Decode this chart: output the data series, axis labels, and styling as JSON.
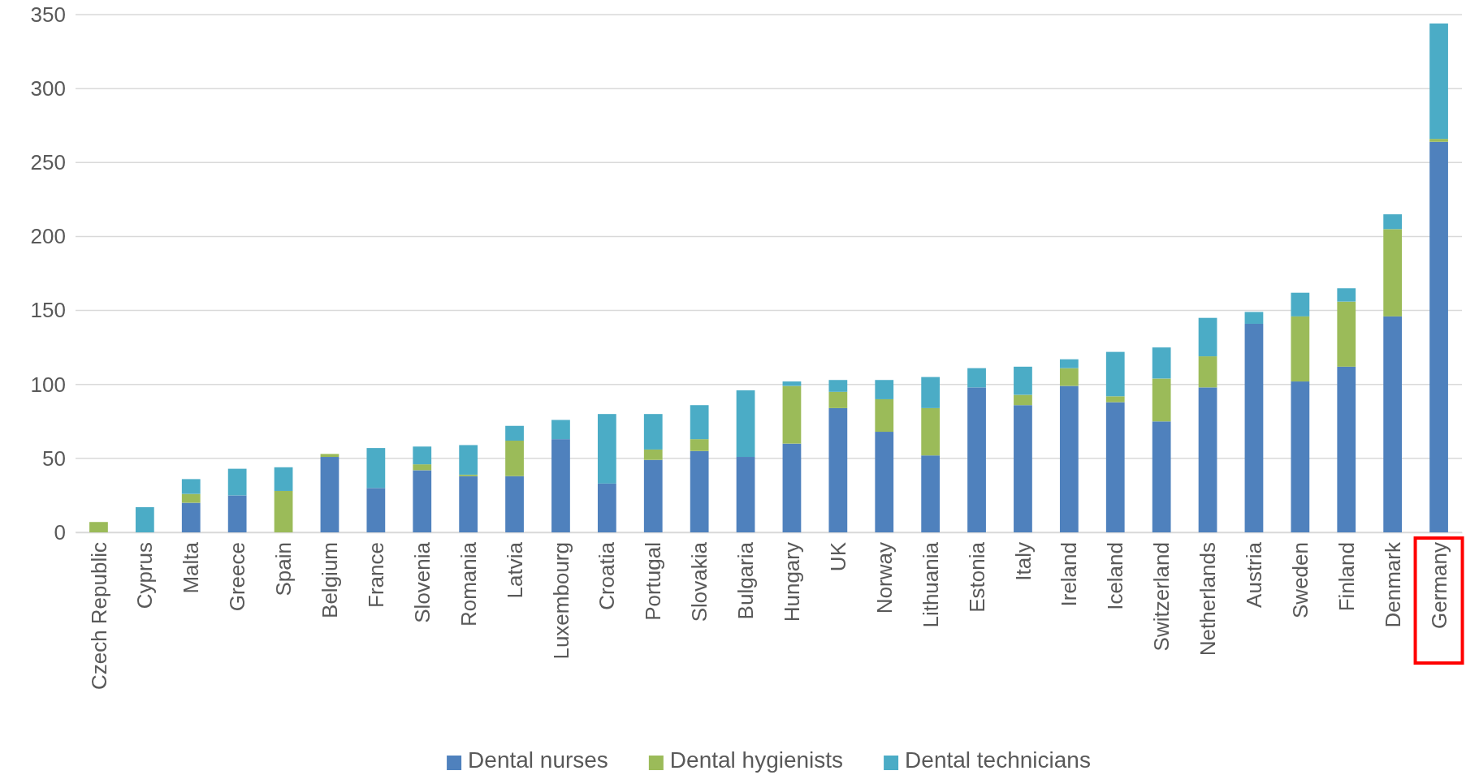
{
  "chart_data": {
    "type": "bar",
    "stacked": true,
    "categories": [
      "Czech Republic",
      "Cyprus",
      "Malta",
      "Greece",
      "Spain",
      "Belgium",
      "France",
      "Slovenia",
      "Romania",
      "Latvia",
      "Luxembourg",
      "Croatia",
      "Portugal",
      "Slovakia",
      "Bulgaria",
      "Hungary",
      "UK",
      "Norway",
      "Lithuania",
      "Estonia",
      "Italy",
      "Ireland",
      "Iceland",
      "Switzerland",
      "Netherlands",
      "Austria",
      "Sweden",
      "Finland",
      "Denmark",
      "Germany"
    ],
    "series": [
      {
        "name": "Dental nurses",
        "color": "#4f81bd",
        "values": [
          0,
          0,
          20,
          25,
          0,
          51,
          30,
          42,
          38,
          38,
          63,
          33,
          49,
          55,
          51,
          60,
          84,
          68,
          52,
          98,
          86,
          99,
          88,
          75,
          98,
          141,
          102,
          112,
          146,
          264
        ]
      },
      {
        "name": "Dental hygienists",
        "color": "#9bbb59",
        "values": [
          7,
          0,
          6,
          0,
          28,
          2,
          0,
          4,
          1,
          24,
          0,
          0,
          7,
          8,
          0,
          39,
          11,
          22,
          32,
          0,
          7,
          12,
          4,
          29,
          21,
          0,
          44,
          44,
          59,
          2
        ]
      },
      {
        "name": "Dental technicians",
        "color": "#4bacc6",
        "values": [
          0,
          17,
          10,
          18,
          16,
          0,
          27,
          12,
          20,
          10,
          13,
          47,
          24,
          23,
          45,
          3,
          8,
          13,
          21,
          13,
          19,
          6,
          30,
          21,
          26,
          8,
          16,
          9,
          10,
          78
        ]
      }
    ],
    "ylim": [
      0,
      350
    ],
    "yticks": [
      0,
      50,
      100,
      150,
      200,
      250,
      300,
      350
    ],
    "grid": "y",
    "legend": "bottom"
  }
}
